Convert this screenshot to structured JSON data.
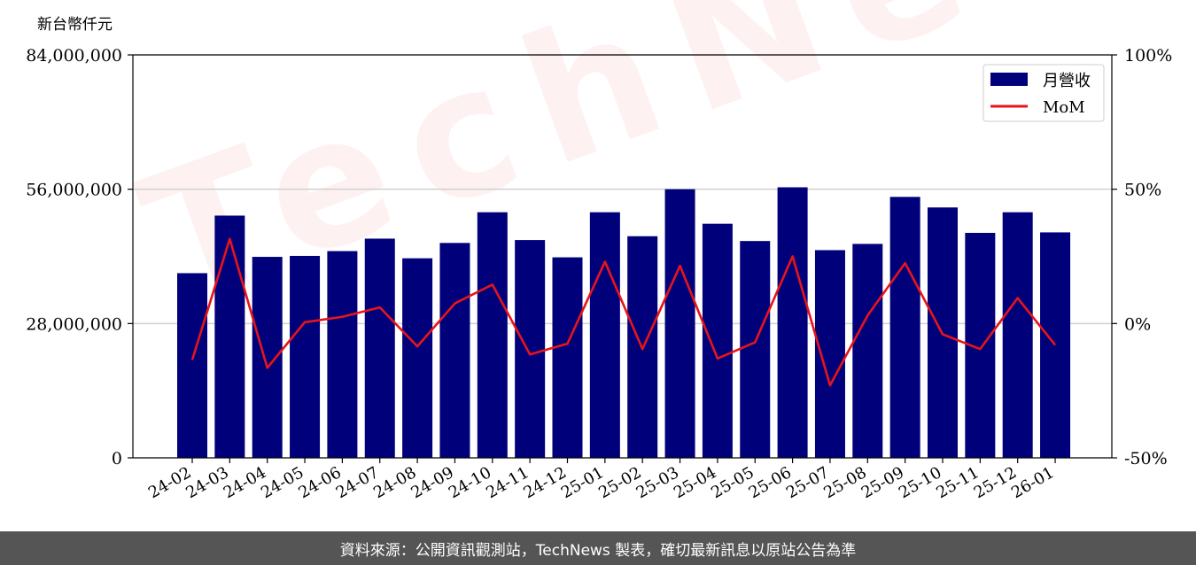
{
  "chart_data": {
    "type": "bar",
    "unit_label": "新台幣仟元",
    "categories": [
      "24-02",
      "24-03",
      "24-04",
      "24-05",
      "24-06",
      "24-07",
      "24-08",
      "24-09",
      "24-10",
      "24-11",
      "24-12",
      "25-01",
      "25-02",
      "25-03",
      "25-04",
      "25-05",
      "25-06",
      "25-07",
      "25-08",
      "25-09",
      "25-10",
      "25-11",
      "25-12",
      "26-01"
    ],
    "series": [
      {
        "name": "月營收",
        "axis": "left",
        "type": "bar",
        "color": "#00007a",
        "values": [
          38500000,
          50500000,
          41900000,
          42100000,
          43100000,
          45700000,
          41600000,
          44800000,
          51200000,
          45400000,
          41800000,
          51200000,
          46200000,
          56000000,
          48800000,
          45200000,
          56400000,
          43300000,
          44600000,
          54400000,
          52200000,
          46900000,
          51200000,
          47000000
        ]
      },
      {
        "name": "MoM",
        "axis": "right",
        "type": "line",
        "color": "#e8141a",
        "values": [
          -13.5,
          31.5,
          -16.5,
          0.5,
          2.5,
          6.0,
          -8.5,
          7.5,
          14.5,
          -11.5,
          -7.5,
          23.0,
          -9.5,
          21.5,
          -13.0,
          -7.0,
          25.0,
          -23.0,
          3.0,
          22.5,
          -4.0,
          -9.5,
          9.5,
          -8.0
        ]
      }
    ],
    "y_left": {
      "lim": [
        0,
        84000000
      ],
      "ticks": [
        "0",
        "28,000,000",
        "56,000,000",
        "84,000,000"
      ]
    },
    "y_right": {
      "lim": [
        -50,
        100
      ],
      "ticks": [
        "-50%",
        "0%",
        "50%",
        "100%"
      ]
    },
    "grid": "horizontal",
    "legend_position": "top-right"
  },
  "watermark": "TechNews",
  "footer_text": "資料來源：公開資訊觀測站，TechNews 製表，確切最新訊息以原站公告為準",
  "colors": {
    "bar": "#00007a",
    "line": "#e8141a",
    "footer_bg": "#555555"
  }
}
